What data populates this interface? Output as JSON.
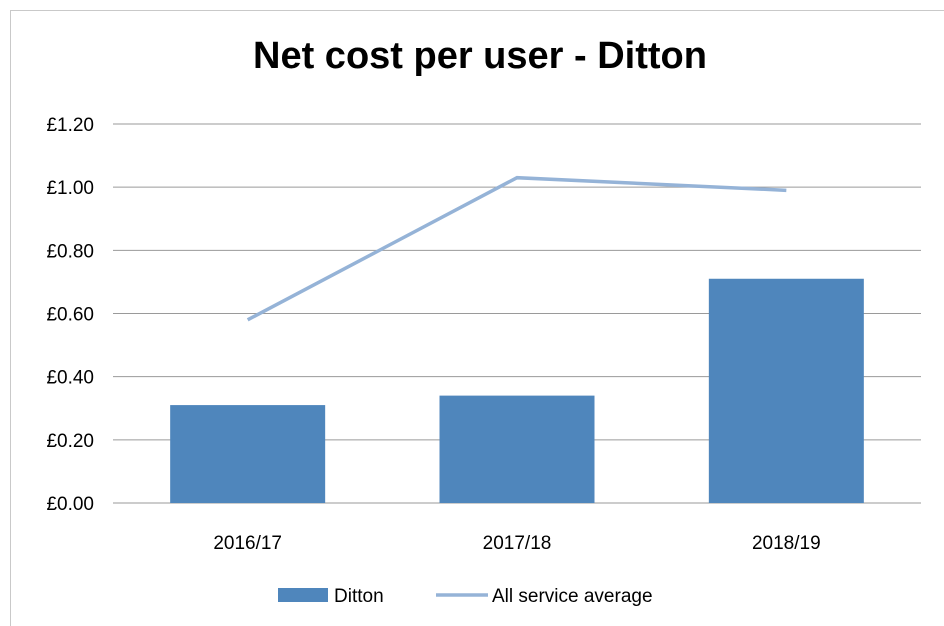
{
  "chart_data": {
    "type": "bar",
    "title": "Net cost per user - Ditton",
    "categories": [
      "2016/17",
      "2017/18",
      "2018/19"
    ],
    "series": [
      {
        "name": "Ditton",
        "type": "bar",
        "values": [
          0.31,
          0.34,
          0.71
        ],
        "color": "#4f86bc"
      },
      {
        "name": "All service average",
        "type": "line",
        "values": [
          0.58,
          1.03,
          0.99
        ],
        "color": "#95b3d7"
      }
    ],
    "ylim": [
      0,
      1.2
    ],
    "yticks": [
      "£0.00",
      "£0.20",
      "£0.40",
      "£0.60",
      "£0.80",
      "£1.00",
      "£1.20"
    ],
    "grid": true,
    "legend_position": "bottom"
  }
}
